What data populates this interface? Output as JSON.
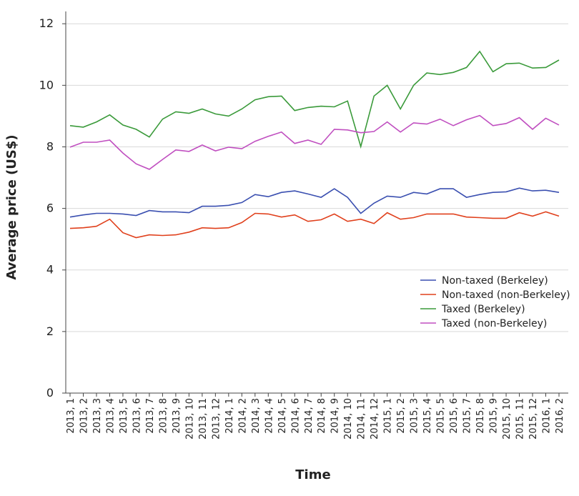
{
  "chart_data": {
    "type": "line",
    "x_label": "Time",
    "y_label": "Average price (US$)",
    "categories": [
      "2013, 1",
      "2013, 2",
      "2013, 3",
      "2013, 4",
      "2013, 5",
      "2013, 6",
      "2013, 7",
      "2013, 8",
      "2013, 9",
      "2013, 10",
      "2013, 11",
      "2013, 12",
      "2014, 1",
      "2014, 2",
      "2014, 3",
      "2014, 4",
      "2014, 5",
      "2014, 6",
      "2014, 7",
      "2014, 8",
      "2014, 9",
      "2014, 10",
      "2014, 11",
      "2014, 12",
      "2015, 1",
      "2015, 2",
      "2015, 3",
      "2015, 4",
      "2015, 5",
      "2015, 6",
      "2015, 7",
      "2015, 8",
      "2015, 9",
      "2015, 10",
      "2015, 11",
      "2015, 12",
      "2016, 1",
      "2016, 2"
    ],
    "series": [
      {
        "name": "Non-taxed (Berkeley)",
        "color": "#3a4fb0",
        "values": [
          5.72,
          5.79,
          5.84,
          5.84,
          5.82,
          5.77,
          5.93,
          5.89,
          5.89,
          5.86,
          6.07,
          6.07,
          6.1,
          6.19,
          6.45,
          6.38,
          6.52,
          6.57,
          6.47,
          6.36,
          6.64,
          6.36,
          5.84,
          6.17,
          6.4,
          6.36,
          6.52,
          6.47,
          6.64,
          6.64,
          6.36,
          6.45,
          6.52,
          6.54,
          6.66,
          6.57,
          6.59,
          6.52
        ]
      },
      {
        "name": "Non-taxed (non-Berkeley)",
        "color": "#e0401c",
        "values": [
          5.35,
          5.37,
          5.42,
          5.65,
          5.21,
          5.05,
          5.14,
          5.12,
          5.14,
          5.23,
          5.37,
          5.35,
          5.37,
          5.54,
          5.84,
          5.82,
          5.72,
          5.79,
          5.58,
          5.63,
          5.82,
          5.58,
          5.65,
          5.51,
          5.86,
          5.65,
          5.7,
          5.82,
          5.82,
          5.82,
          5.72,
          5.7,
          5.68,
          5.68,
          5.86,
          5.75,
          5.89,
          5.75
        ]
      },
      {
        "name": "Taxed (Berkeley)",
        "color": "#3a9a3a",
        "values": [
          8.69,
          8.64,
          8.81,
          9.04,
          8.71,
          8.57,
          8.32,
          8.9,
          9.14,
          9.09,
          9.23,
          9.07,
          9.0,
          9.23,
          9.53,
          9.63,
          9.65,
          9.18,
          9.28,
          9.32,
          9.3,
          9.49,
          8.01,
          9.65,
          10.0,
          9.23,
          10.0,
          10.4,
          10.35,
          10.42,
          10.58,
          11.1,
          10.44,
          10.7,
          10.72,
          10.56,
          10.58,
          10.82
        ]
      },
      {
        "name": "Taxed (non-Berkeley)",
        "color": "#c04fc0",
        "values": [
          7.99,
          8.15,
          8.15,
          8.22,
          7.8,
          7.45,
          7.27,
          7.59,
          7.9,
          7.85,
          8.06,
          7.87,
          7.99,
          7.94,
          8.18,
          8.34,
          8.48,
          8.11,
          8.22,
          8.08,
          8.57,
          8.55,
          8.46,
          8.5,
          8.81,
          8.48,
          8.78,
          8.74,
          8.9,
          8.69,
          8.88,
          9.02,
          8.69,
          8.76,
          8.95,
          8.57,
          8.93,
          8.71
        ]
      }
    ],
    "ylim": [
      0,
      12.4
    ],
    "yticks": [
      0,
      2,
      4,
      6,
      8,
      10,
      12
    ],
    "grid": true,
    "legend": "lower right"
  }
}
